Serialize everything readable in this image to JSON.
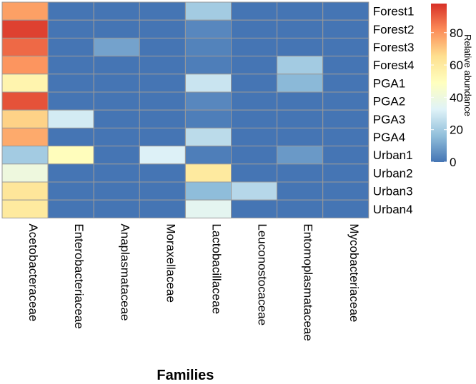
{
  "chart_data": {
    "type": "heatmap",
    "xlabel": "Families",
    "ylabel": "",
    "columns": [
      "Acetobacteraceae",
      "Enterobacteriaceae",
      "Anaplasmataceae",
      "Moraxellaceae",
      "Lactobacillaceae",
      "Leuconostocaceae",
      "Entomoplasmataceae",
      "Mycobacteriaceae"
    ],
    "rows": [
      "Forest1",
      "Forest2",
      "Forest3",
      "Forest4",
      "PGA1",
      "PGA2",
      "PGA3",
      "PGA4",
      "Urban1",
      "Urban2",
      "Urban3",
      "Urban4"
    ],
    "values": [
      [
        78,
        0,
        0,
        0,
        20,
        0,
        0,
        0
      ],
      [
        95,
        0,
        0,
        0,
        4,
        0,
        0,
        0
      ],
      [
        88,
        0,
        10,
        0,
        3,
        0,
        0,
        0
      ],
      [
        80,
        0,
        0,
        0,
        2,
        0,
        20,
        0
      ],
      [
        55,
        0,
        0,
        0,
        28,
        0,
        15,
        0
      ],
      [
        92,
        0,
        0,
        0,
        4,
        0,
        0,
        0
      ],
      [
        68,
        30,
        0,
        0,
        2,
        0,
        0,
        0
      ],
      [
        76,
        0,
        0,
        0,
        25,
        0,
        0,
        0
      ],
      [
        20,
        50,
        0,
        32,
        2,
        0,
        8,
        0
      ],
      [
        40,
        0,
        0,
        0,
        60,
        0,
        0,
        0
      ],
      [
        62,
        0,
        0,
        0,
        16,
        24,
        0,
        0
      ],
      [
        60,
        0,
        0,
        0,
        35,
        0,
        0,
        0
      ]
    ],
    "legend": {
      "title": "Relative abundance",
      "ticks": [
        0,
        20,
        40,
        60,
        80
      ],
      "range": [
        0,
        98
      ],
      "colors": [
        "#4575b4",
        "#91bfdb",
        "#e0f3f8",
        "#ffffbf",
        "#fee090",
        "#fc8d59",
        "#d73027"
      ]
    },
    "grid_color": "#999999"
  }
}
